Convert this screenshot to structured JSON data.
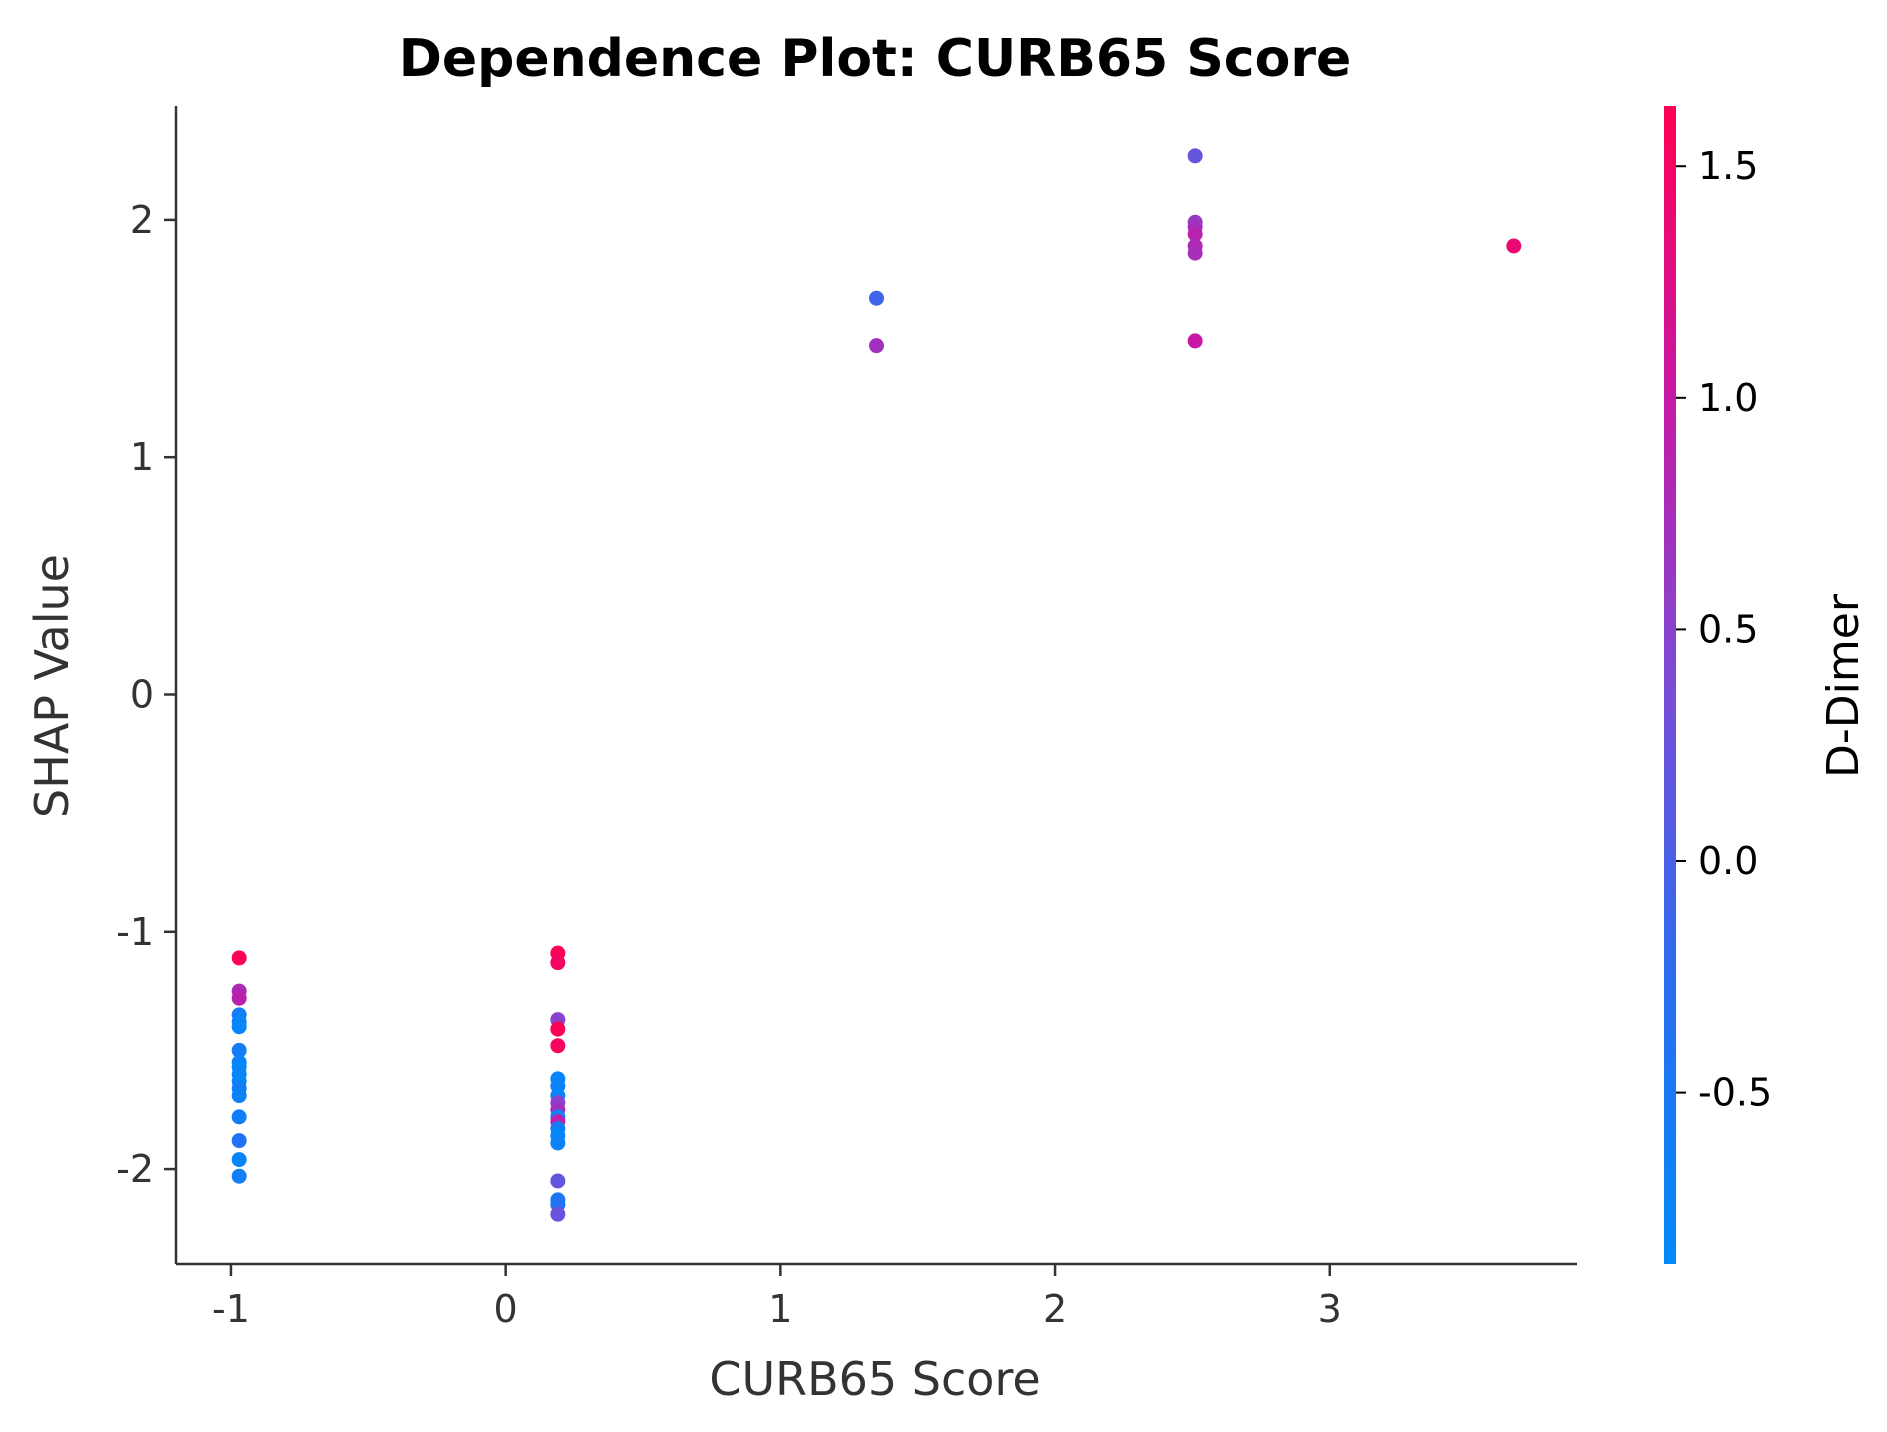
{
  "chart_data": {
    "type": "scatter",
    "title": "Dependence Plot: CURB65 Score",
    "xlabel": "CURB65 Score",
    "ylabel": "SHAP Value",
    "xlim": [
      -1.2,
      3.9
    ],
    "ylim": [
      -2.4,
      2.48
    ],
    "x_ticks": [
      -1,
      0,
      1,
      2,
      3
    ],
    "x_tick_labels": [
      "-1",
      "0",
      "1",
      "2",
      "3"
    ],
    "y_ticks": [
      -2,
      -1,
      0,
      1,
      2
    ],
    "y_tick_labels": [
      "-2",
      "-1",
      "0",
      "1",
      "2"
    ],
    "grid": false,
    "colorbar": {
      "label": "D-Dimer",
      "range": [
        -0.87,
        1.63
      ],
      "ticks": [
        -0.5,
        0.0,
        0.5,
        1.0,
        1.5
      ],
      "tick_labels": [
        "-0.5",
        "0.0",
        "0.5",
        "1.0",
        "1.5"
      ],
      "colors": [
        "#008afb",
        "#ff0052"
      ]
    },
    "points": [
      {
        "x": -0.97,
        "y": -1.11,
        "c": 1.6
      },
      {
        "x": -0.97,
        "y": -1.25,
        "c": 0.8
      },
      {
        "x": -0.97,
        "y": -1.28,
        "c": 0.9
      },
      {
        "x": -0.97,
        "y": -1.35,
        "c": -0.6
      },
      {
        "x": -0.97,
        "y": -1.38,
        "c": -0.7
      },
      {
        "x": -0.97,
        "y": -1.4,
        "c": -0.8
      },
      {
        "x": -0.97,
        "y": -1.5,
        "c": -0.6
      },
      {
        "x": -0.97,
        "y": -1.55,
        "c": -0.7
      },
      {
        "x": -0.97,
        "y": -1.57,
        "c": -0.8
      },
      {
        "x": -0.97,
        "y": -1.6,
        "c": -0.7
      },
      {
        "x": -0.97,
        "y": -1.63,
        "c": -0.8
      },
      {
        "x": -0.97,
        "y": -1.66,
        "c": -0.6
      },
      {
        "x": -0.97,
        "y": -1.69,
        "c": -0.7
      },
      {
        "x": -0.97,
        "y": -1.78,
        "c": -0.65
      },
      {
        "x": -0.97,
        "y": -1.88,
        "c": -0.4
      },
      {
        "x": -0.97,
        "y": -1.96,
        "c": -0.75
      },
      {
        "x": -0.97,
        "y": -2.03,
        "c": -0.6
      },
      {
        "x": 0.19,
        "y": -1.09,
        "c": 1.6
      },
      {
        "x": 0.19,
        "y": -1.13,
        "c": 1.5
      },
      {
        "x": 0.19,
        "y": -1.37,
        "c": 0.5
      },
      {
        "x": 0.19,
        "y": -1.41,
        "c": 1.6
      },
      {
        "x": 0.19,
        "y": -1.48,
        "c": 1.55
      },
      {
        "x": 0.19,
        "y": -1.62,
        "c": -0.8
      },
      {
        "x": 0.19,
        "y": -1.65,
        "c": -0.7
      },
      {
        "x": 0.19,
        "y": -1.69,
        "c": -0.8
      },
      {
        "x": 0.19,
        "y": -1.72,
        "c": 0.5
      },
      {
        "x": 0.19,
        "y": -1.75,
        "c": 0.7
      },
      {
        "x": 0.19,
        "y": -1.78,
        "c": -0.7
      },
      {
        "x": 0.19,
        "y": -1.8,
        "c": 0.9
      },
      {
        "x": 0.19,
        "y": -1.83,
        "c": -0.6
      },
      {
        "x": 0.19,
        "y": -1.86,
        "c": -0.8
      },
      {
        "x": 0.19,
        "y": -1.89,
        "c": -0.7
      },
      {
        "x": 0.19,
        "y": -2.05,
        "c": 0.2
      },
      {
        "x": 0.19,
        "y": -2.13,
        "c": -0.5
      },
      {
        "x": 0.19,
        "y": -2.15,
        "c": -0.4
      },
      {
        "x": 0.19,
        "y": -2.19,
        "c": 0.25
      },
      {
        "x": 1.35,
        "y": 1.67,
        "c": -0.1
      },
      {
        "x": 1.35,
        "y": 1.47,
        "c": 0.7
      },
      {
        "x": 2.51,
        "y": 2.27,
        "c": 0.2
      },
      {
        "x": 2.51,
        "y": 1.99,
        "c": 0.6
      },
      {
        "x": 2.51,
        "y": 1.97,
        "c": 0.7
      },
      {
        "x": 2.51,
        "y": 1.94,
        "c": 0.9
      },
      {
        "x": 2.51,
        "y": 1.89,
        "c": 0.8
      },
      {
        "x": 2.51,
        "y": 1.86,
        "c": 0.75
      },
      {
        "x": 2.51,
        "y": 1.49,
        "c": 1.0
      },
      {
        "x": 3.67,
        "y": 1.89,
        "c": 1.4
      }
    ]
  }
}
